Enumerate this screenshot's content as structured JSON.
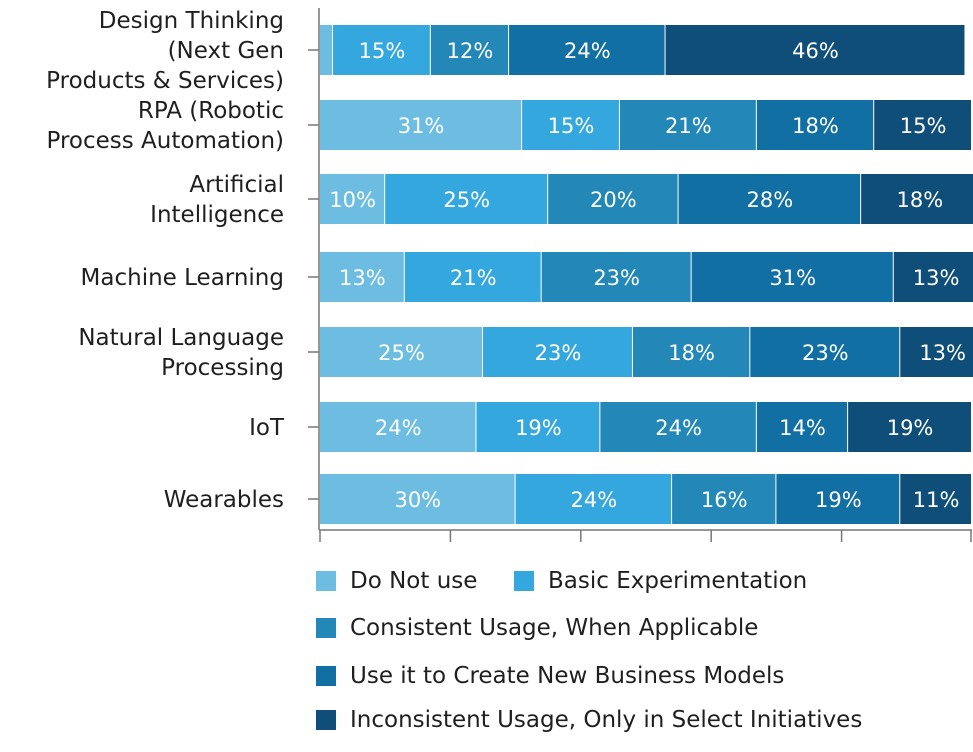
{
  "chart_data": {
    "type": "bar",
    "orientation": "horizontal",
    "stacked": true,
    "title": "",
    "xlabel": "",
    "ylabel": "",
    "xlim": [
      0,
      100
    ],
    "categories": [
      "Design Thinking (Next Gen Products & Services)",
      "RPA (Robotic Process Automation)",
      "Artificial Intelligence",
      "Machine Learning",
      "Natural Language Processing",
      "IoT",
      "Wearables"
    ],
    "category_lines": [
      [
        "Design Thinking",
        "(Next Gen",
        "Products & Services)"
      ],
      [
        "RPA (Robotic",
        "Process Automation)"
      ],
      [
        "Artificial",
        "Intelligence"
      ],
      [
        "Machine Learning"
      ],
      [
        "Natural Language",
        "Processing"
      ],
      [
        "IoT"
      ],
      [
        "Wearables"
      ]
    ],
    "series": [
      {
        "name": "Do Not use",
        "color": "#6dbde3",
        "values": [
          2,
          31,
          10,
          13,
          25,
          24,
          30
        ],
        "labels": [
          "",
          "31%",
          "10%",
          "13%",
          "25%",
          "24%",
          "30%"
        ]
      },
      {
        "name": "Basic Experimentation",
        "color": "#35a7df",
        "values": [
          15,
          15,
          25,
          21,
          23,
          19,
          24
        ],
        "labels": [
          "15%",
          "15%",
          "25%",
          "21%",
          "23%",
          "19%",
          "24%"
        ]
      },
      {
        "name": "Consistent Usage, When Applicable",
        "color": "#2388b8",
        "values": [
          12,
          21,
          20,
          23,
          18,
          24,
          16
        ],
        "labels": [
          "12%",
          "21%",
          "20%",
          "23%",
          "18%",
          "24%",
          "16%"
        ]
      },
      {
        "name": "Use it to Create New Business Models",
        "color": "#126fa4",
        "values": [
          24,
          18,
          28,
          31,
          23,
          14,
          19
        ],
        "labels": [
          "24%",
          "18%",
          "28%",
          "31%",
          "23%",
          "14%",
          "19%"
        ]
      },
      {
        "name": "Inconsistent Usage, Only in Select Initiatives",
        "color": "#0e4e78",
        "values": [
          46,
          15,
          18,
          13,
          13,
          19,
          11
        ],
        "labels": [
          "46%",
          "15%",
          "18%",
          "13%",
          "13%",
          "19%",
          "11%"
        ]
      }
    ],
    "legend_position": "bottom",
    "grid": false
  }
}
